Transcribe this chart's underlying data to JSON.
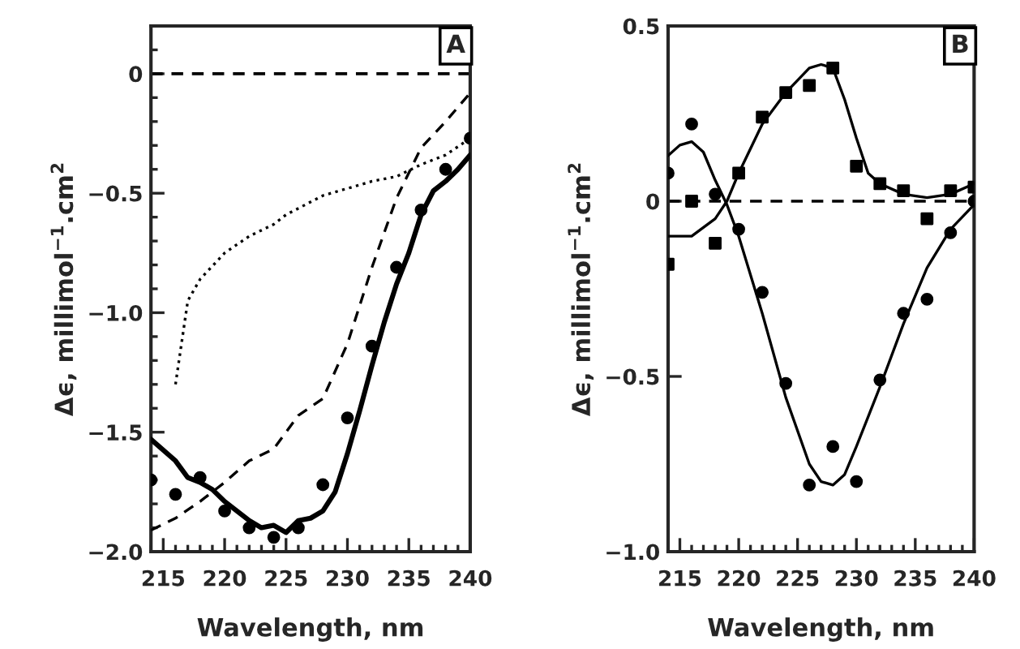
{
  "chart_data": [
    {
      "type": "line",
      "xlabel": "Wavelength, nm",
      "ylabel": "Δϵ, millimol$^{−1}$.cm$^{2}$",
      "annotations": [
        "A"
      ],
      "xlim": [
        214,
        240
      ],
      "xticks": [
        215,
        220,
        225,
        230,
        235,
        240
      ],
      "ylim": [
        -2.0,
        0.2
      ],
      "yticks": [
        {
          "value": -2.0,
          "label": "−2.0"
        },
        {
          "value": -1.5,
          "label": "−1.5"
        },
        {
          "value": -1.0,
          "label": "−1.0"
        },
        {
          "value": -0.5,
          "label": "−0.5"
        },
        0
      ],
      "ref_lines": [
        {
          "axis": "y",
          "value": 0,
          "line_style": "dashed",
          "color": "#000000"
        }
      ],
      "series": [
        {
          "type": "scatter",
          "marker": "circle",
          "color": "#000000",
          "x": [
            214,
            216,
            218,
            220,
            222,
            224,
            226,
            228,
            230,
            232,
            234,
            236,
            238,
            240
          ],
          "values": [
            -1.7,
            -1.76,
            -1.69,
            -1.83,
            -1.9,
            -1.94,
            -1.9,
            -1.72,
            -1.44,
            -1.14,
            -0.81,
            -0.57,
            -0.4,
            -0.27
          ]
        },
        {
          "line_style": "solid",
          "color": "#000000",
          "x": [
            214,
            216,
            217,
            218,
            219,
            220,
            221,
            222,
            223,
            224,
            225,
            226,
            227,
            228,
            229,
            230,
            231,
            232,
            233,
            234,
            235,
            236,
            237,
            238,
            239,
            240
          ],
          "values": [
            -1.53,
            -1.62,
            -1.69,
            -1.71,
            -1.74,
            -1.79,
            -1.83,
            -1.87,
            -1.9,
            -1.89,
            -1.92,
            -1.87,
            -1.86,
            -1.83,
            -1.75,
            -1.59,
            -1.41,
            -1.22,
            -1.04,
            -0.88,
            -0.75,
            -0.59,
            -0.49,
            -0.45,
            -0.4,
            -0.34
          ]
        },
        {
          "line_style": "dashed",
          "color": "#000000",
          "x": [
            214,
            216,
            218,
            220,
            222,
            224,
            226,
            228,
            230,
            232,
            234,
            236,
            238,
            240
          ],
          "values": [
            -1.91,
            -1.86,
            -1.79,
            -1.71,
            -1.62,
            -1.57,
            -1.43,
            -1.36,
            -1.13,
            -0.81,
            -0.52,
            -0.31,
            -0.2,
            -0.08
          ]
        },
        {
          "line_style": "dotted",
          "color": "#000000",
          "x": [
            216,
            217,
            218,
            220,
            222,
            224,
            225,
            228,
            230,
            232,
            234,
            236,
            238,
            240
          ],
          "values": [
            -1.3,
            -0.95,
            -0.86,
            -0.75,
            -0.68,
            -0.63,
            -0.59,
            -0.51,
            -0.48,
            -0.45,
            -0.43,
            -0.38,
            -0.34,
            -0.27
          ]
        }
      ]
    },
    {
      "type": "line",
      "xlabel": "Wavelength, nm",
      "ylabel": "Δϵ, millimol$^{−1}$.cm$^{2}$",
      "annotations": [
        "B"
      ],
      "xlim": [
        214,
        240
      ],
      "xticks": [
        215,
        220,
        225,
        230,
        235,
        240
      ],
      "ylim": [
        -1.0,
        0.5
      ],
      "yticks": [
        {
          "value": -1.0,
          "label": "−1.0"
        },
        {
          "value": -0.5,
          "label": "−0.5"
        },
        0,
        0.5
      ],
      "ref_lines": [
        {
          "axis": "y",
          "value": 0,
          "line_style": "dashed",
          "color": "#000000"
        }
      ],
      "series": [
        {
          "type": "scatter",
          "marker": "circle",
          "color": "#000000",
          "x": [
            214,
            216,
            218,
            220,
            222,
            224,
            226,
            228,
            230,
            232,
            234,
            236,
            238,
            240
          ],
          "values": [
            0.08,
            0.22,
            0.02,
            -0.08,
            -0.26,
            -0.52,
            -0.81,
            -0.7,
            -0.8,
            -0.51,
            -0.32,
            -0.28,
            -0.09,
            0.0
          ]
        },
        {
          "type": "scatter",
          "marker": "square",
          "color": "#000000",
          "x": [
            214,
            216,
            218,
            220,
            222,
            224,
            226,
            228,
            230,
            232,
            234,
            236,
            238,
            240
          ],
          "values": [
            -0.18,
            0.0,
            -0.12,
            0.08,
            0.24,
            0.31,
            0.33,
            0.38,
            0.1,
            0.05,
            0.03,
            -0.05,
            0.03,
            0.04
          ]
        },
        {
          "line_style": "solid",
          "color": "#000000",
          "x": [
            214,
            215,
            216,
            217,
            218,
            219,
            220,
            222,
            224,
            226,
            227,
            228,
            229,
            230,
            232,
            234,
            236,
            238,
            240
          ],
          "values": [
            0.13,
            0.16,
            0.17,
            0.14,
            0.06,
            -0.01,
            -0.1,
            -0.32,
            -0.56,
            -0.75,
            -0.8,
            -0.81,
            -0.78,
            -0.7,
            -0.53,
            -0.35,
            -0.19,
            -0.08,
            -0.01
          ]
        },
        {
          "line_style": "solid",
          "color": "#000000",
          "x": [
            214,
            216,
            218,
            219,
            220,
            222,
            224,
            226,
            227,
            228,
            229,
            230,
            231,
            232,
            234,
            236,
            238,
            240
          ],
          "values": [
            -0.1,
            -0.1,
            -0.05,
            0.0,
            0.08,
            0.22,
            0.31,
            0.38,
            0.39,
            0.38,
            0.29,
            0.18,
            0.08,
            0.05,
            0.02,
            0.01,
            0.02,
            0.05
          ]
        }
      ]
    }
  ]
}
